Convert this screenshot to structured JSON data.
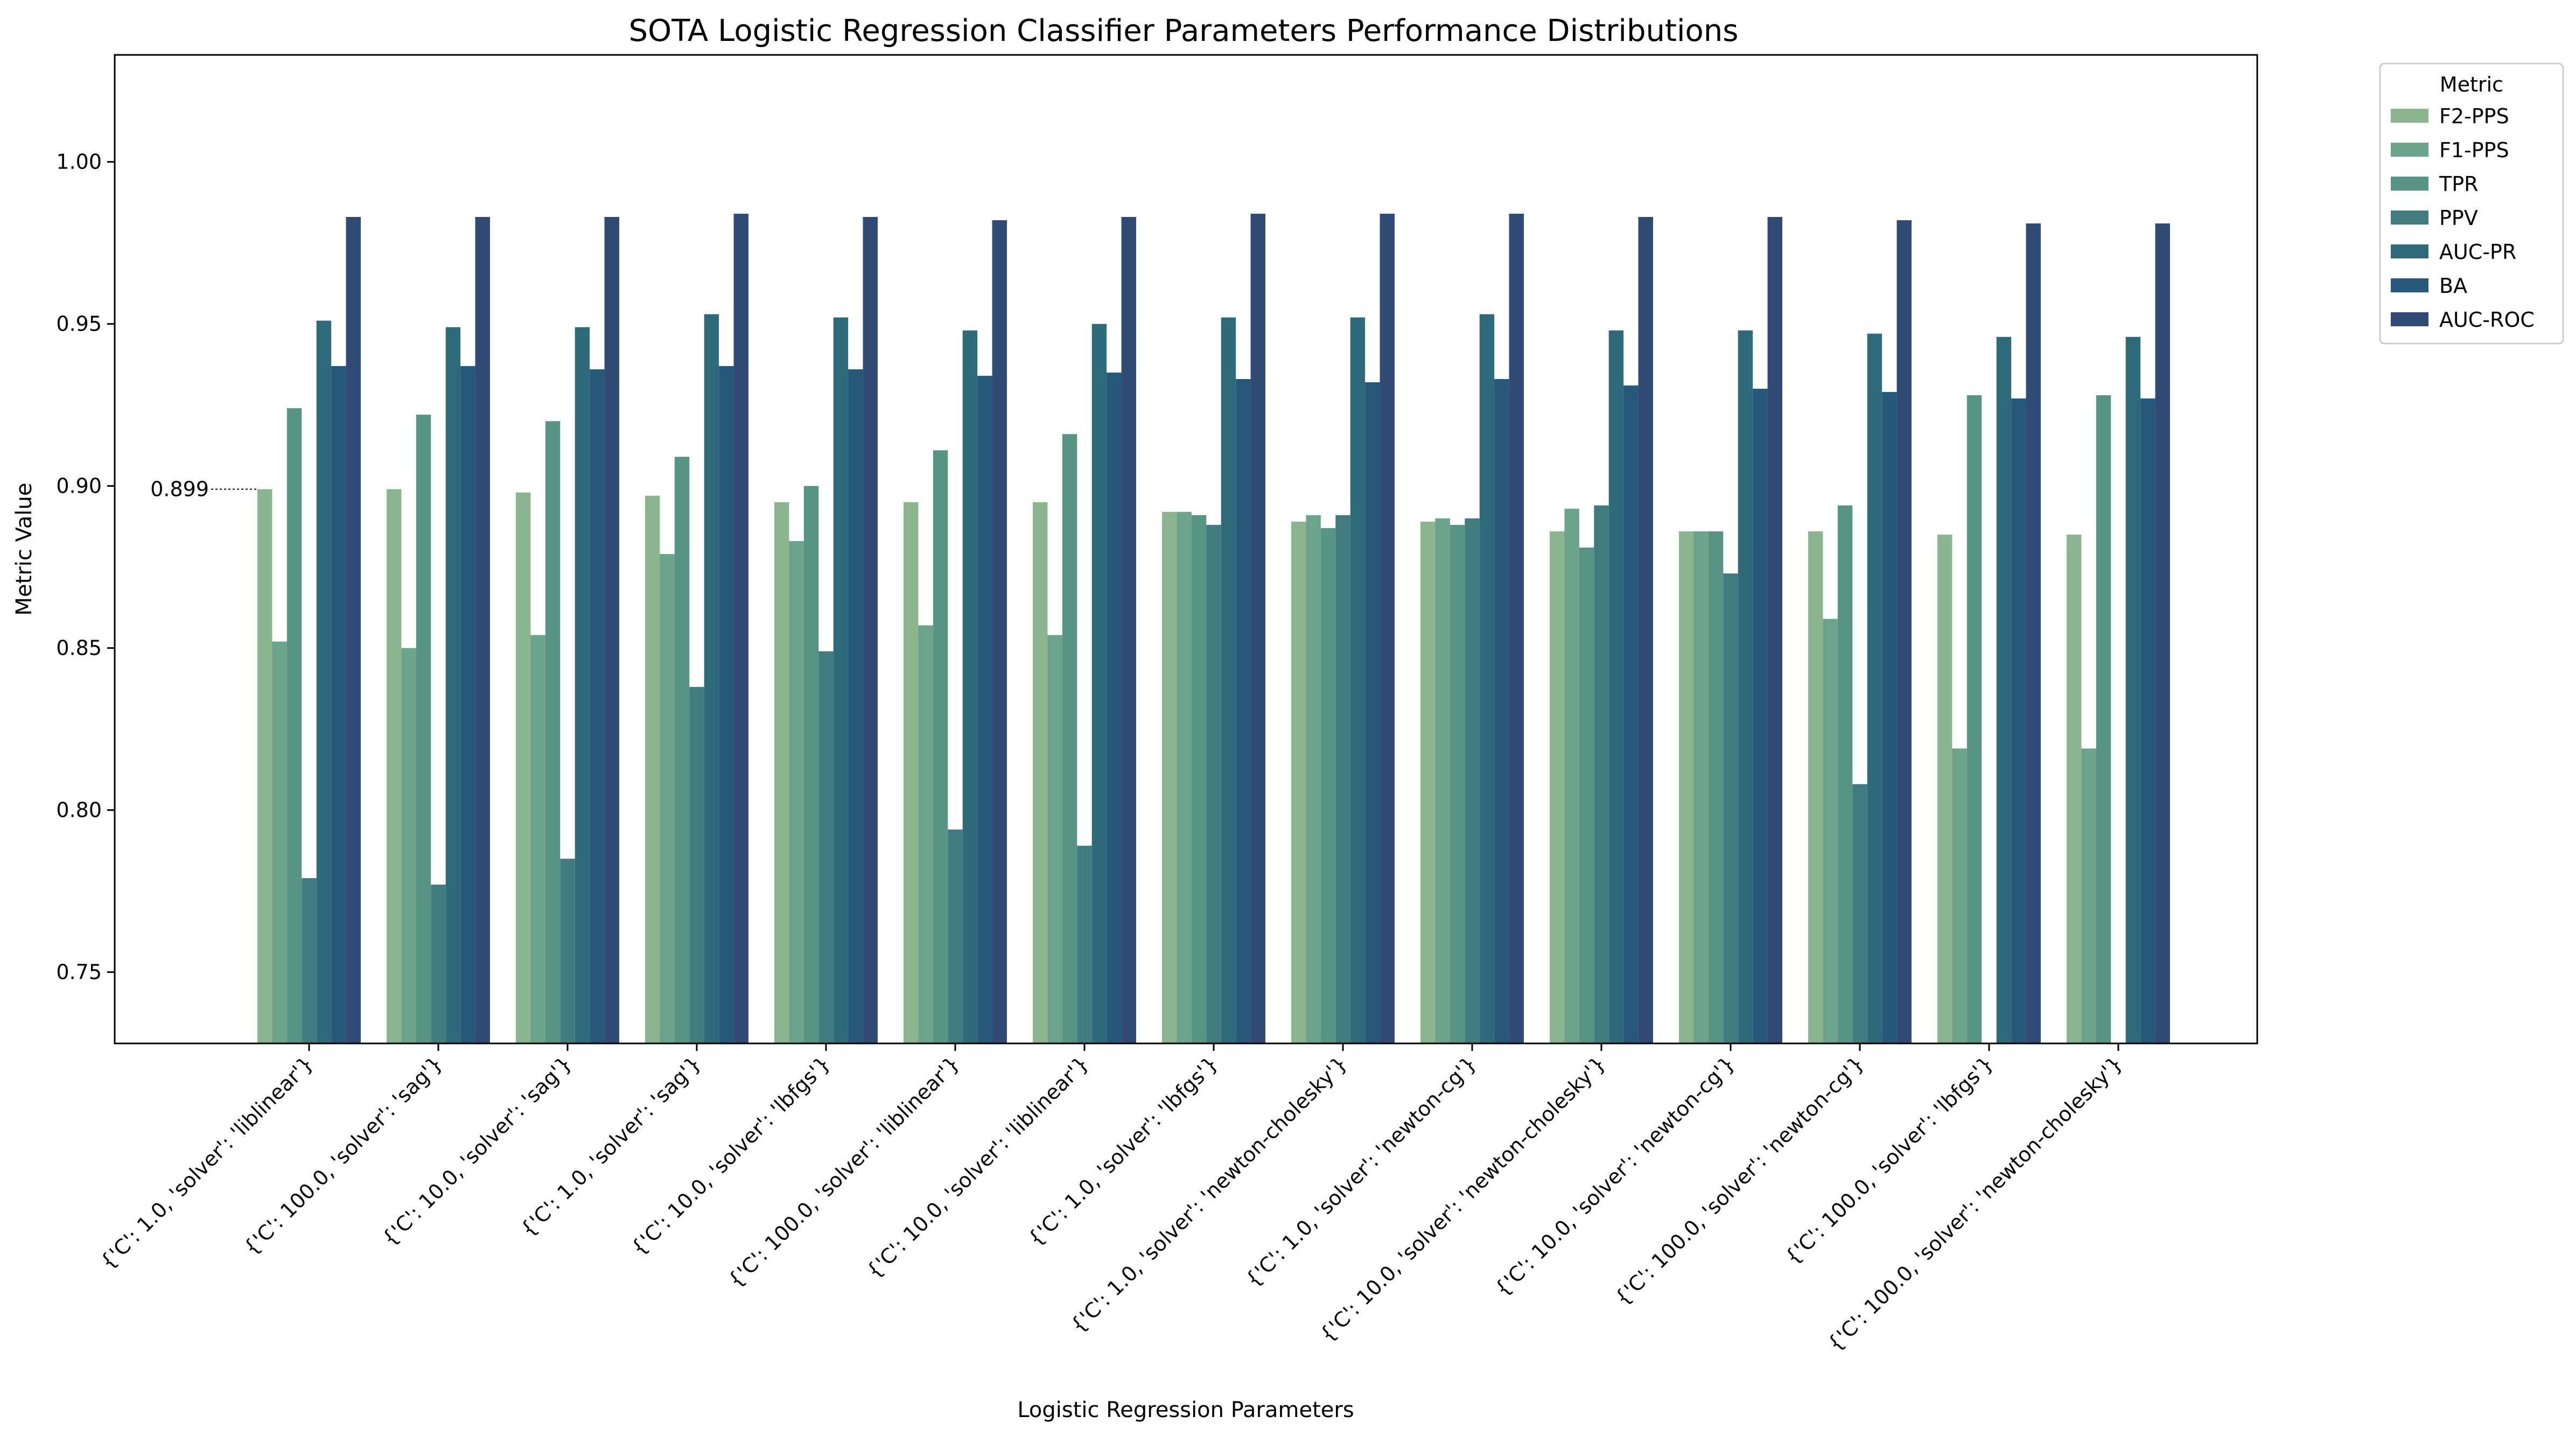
{
  "chart_data": {
    "type": "bar",
    "title": "SOTA Logistic Regression Classifier Parameters Performance Distributions",
    "xlabel": "Logistic Regression Parameters",
    "ylabel": "Metric Value",
    "ylim": [
      0.728,
      1.033
    ],
    "yticks": [
      0.75,
      0.8,
      0.85,
      0.9,
      0.95,
      1.0
    ],
    "ytick_labels": [
      "0.75",
      "0.80",
      "0.85",
      "0.90",
      "0.95",
      "1.00"
    ],
    "grid": false,
    "legend": {
      "title": "Metric",
      "placement": "outside-top-right"
    },
    "categories": [
      "{'C': 1.0, 'solver': 'liblinear'}",
      "{'C': 100.0, 'solver': 'sag'}",
      "{'C': 10.0, 'solver': 'sag'}",
      "{'C': 1.0, 'solver': 'sag'}",
      "{'C': 10.0, 'solver': 'lbfgs'}",
      "{'C': 100.0, 'solver': 'liblinear'}",
      "{'C': 10.0, 'solver': 'liblinear'}",
      "{'C': 1.0, 'solver': 'lbfgs'}",
      "{'C': 1.0, 'solver': 'newton-cholesky'}",
      "{'C': 1.0, 'solver': 'newton-cg'}",
      "{'C': 10.0, 'solver': 'newton-cholesky'}",
      "{'C': 10.0, 'solver': 'newton-cg'}",
      "{'C': 100.0, 'solver': 'newton-cg'}",
      "{'C': 100.0, 'solver': 'lbfgs'}",
      "{'C': 100.0, 'solver': 'newton-cholesky'}"
    ],
    "series": [
      {
        "name": "F2-PPS",
        "color": "#8bb48f",
        "values": [
          0.899,
          0.899,
          0.898,
          0.897,
          0.895,
          0.895,
          0.895,
          0.892,
          0.889,
          0.889,
          0.886,
          0.886,
          0.886,
          0.885,
          0.885
        ]
      },
      {
        "name": "F1-PPS",
        "color": "#6ca38b",
        "values": [
          0.852,
          0.85,
          0.854,
          0.879,
          0.883,
          0.857,
          0.854,
          0.892,
          0.891,
          0.89,
          0.893,
          0.886,
          0.859,
          0.819,
          0.819
        ]
      },
      {
        "name": "TPR",
        "color": "#579486",
        "values": [
          0.924,
          0.922,
          0.92,
          0.909,
          0.9,
          0.911,
          0.916,
          0.891,
          0.887,
          0.888,
          0.881,
          0.886,
          0.894,
          0.928,
          0.928
        ]
      },
      {
        "name": "PPV",
        "color": "#407b80",
        "values": [
          0.779,
          0.777,
          0.785,
          0.838,
          0.849,
          0.794,
          0.789,
          0.888,
          0.891,
          0.89,
          0.894,
          0.873,
          0.808,
          0.727,
          0.727
        ]
      },
      {
        "name": "AUC-PR",
        "color": "#2f6a7c",
        "values": [
          0.951,
          0.949,
          0.949,
          0.953,
          0.952,
          0.948,
          0.95,
          0.952,
          0.952,
          0.953,
          0.948,
          0.948,
          0.947,
          0.946,
          0.946
        ]
      },
      {
        "name": "BA",
        "color": "#28587a",
        "values": [
          0.937,
          0.937,
          0.936,
          0.937,
          0.936,
          0.934,
          0.935,
          0.933,
          0.932,
          0.933,
          0.931,
          0.93,
          0.929,
          0.927,
          0.927
        ]
      },
      {
        "name": "AUC-ROC",
        "color": "#2f4a73",
        "values": [
          0.983,
          0.983,
          0.983,
          0.984,
          0.983,
          0.982,
          0.983,
          0.984,
          0.984,
          0.984,
          0.983,
          0.983,
          0.982,
          0.981,
          0.981
        ]
      }
    ],
    "annotation": {
      "text": "0.899",
      "value": 0.899,
      "category_index": 0,
      "series_index": 0
    }
  }
}
